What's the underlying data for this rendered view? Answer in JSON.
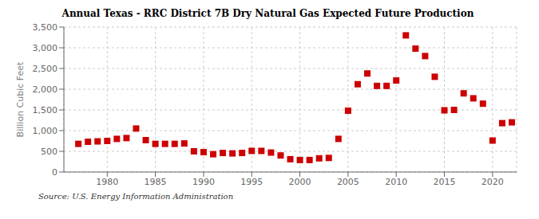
{
  "chart_data": {
    "type": "scatter",
    "title": "Annual Texas - RRC District 7B Dry Natural Gas Expected Future Production",
    "ylabel": "Billion Cubic Feet",
    "annotation": "Source: U.S. Energy Information Administration",
    "color": "#cc0000",
    "marker": "square",
    "grid": true,
    "xlim": [
      1975.5,
      2022.5
    ],
    "ylim": [
      0,
      3500
    ],
    "xticks": [
      1980,
      1985,
      1990,
      1995,
      2000,
      2005,
      2010,
      2015,
      2020
    ],
    "yticks": [
      0,
      500,
      {
        "value": 1000,
        "label": "1,000"
      },
      {
        "value": 1500,
        "label": "1,500"
      },
      {
        "value": 2000,
        "label": "2,000"
      },
      {
        "value": 2500,
        "label": "2,500"
      },
      {
        "value": 3000,
        "label": "3,000"
      },
      {
        "value": 3500,
        "label": "3,500"
      }
    ],
    "x": [
      1977,
      1978,
      1979,
      1980,
      1981,
      1982,
      1983,
      1984,
      1985,
      1986,
      1987,
      1988,
      1989,
      1990,
      1991,
      1992,
      1993,
      1994,
      1995,
      1996,
      1997,
      1998,
      1999,
      2000,
      2001,
      2002,
      2003,
      2004,
      2005,
      2006,
      2007,
      2008,
      2009,
      2010,
      2011,
      2012,
      2013,
      2014,
      2015,
      2016,
      2017,
      2018,
      2019,
      2020,
      2021,
      2022
    ],
    "values": [
      680,
      730,
      740,
      750,
      800,
      820,
      1050,
      770,
      680,
      680,
      680,
      690,
      500,
      480,
      430,
      460,
      450,
      460,
      510,
      510,
      470,
      400,
      310,
      290,
      290,
      330,
      340,
      800,
      1480,
      2120,
      2380,
      2080,
      2080,
      2210,
      3300,
      2980,
      2800,
      2300,
      1490,
      1500,
      1900,
      1780,
      1650,
      760,
      1180,
      1200
    ]
  }
}
